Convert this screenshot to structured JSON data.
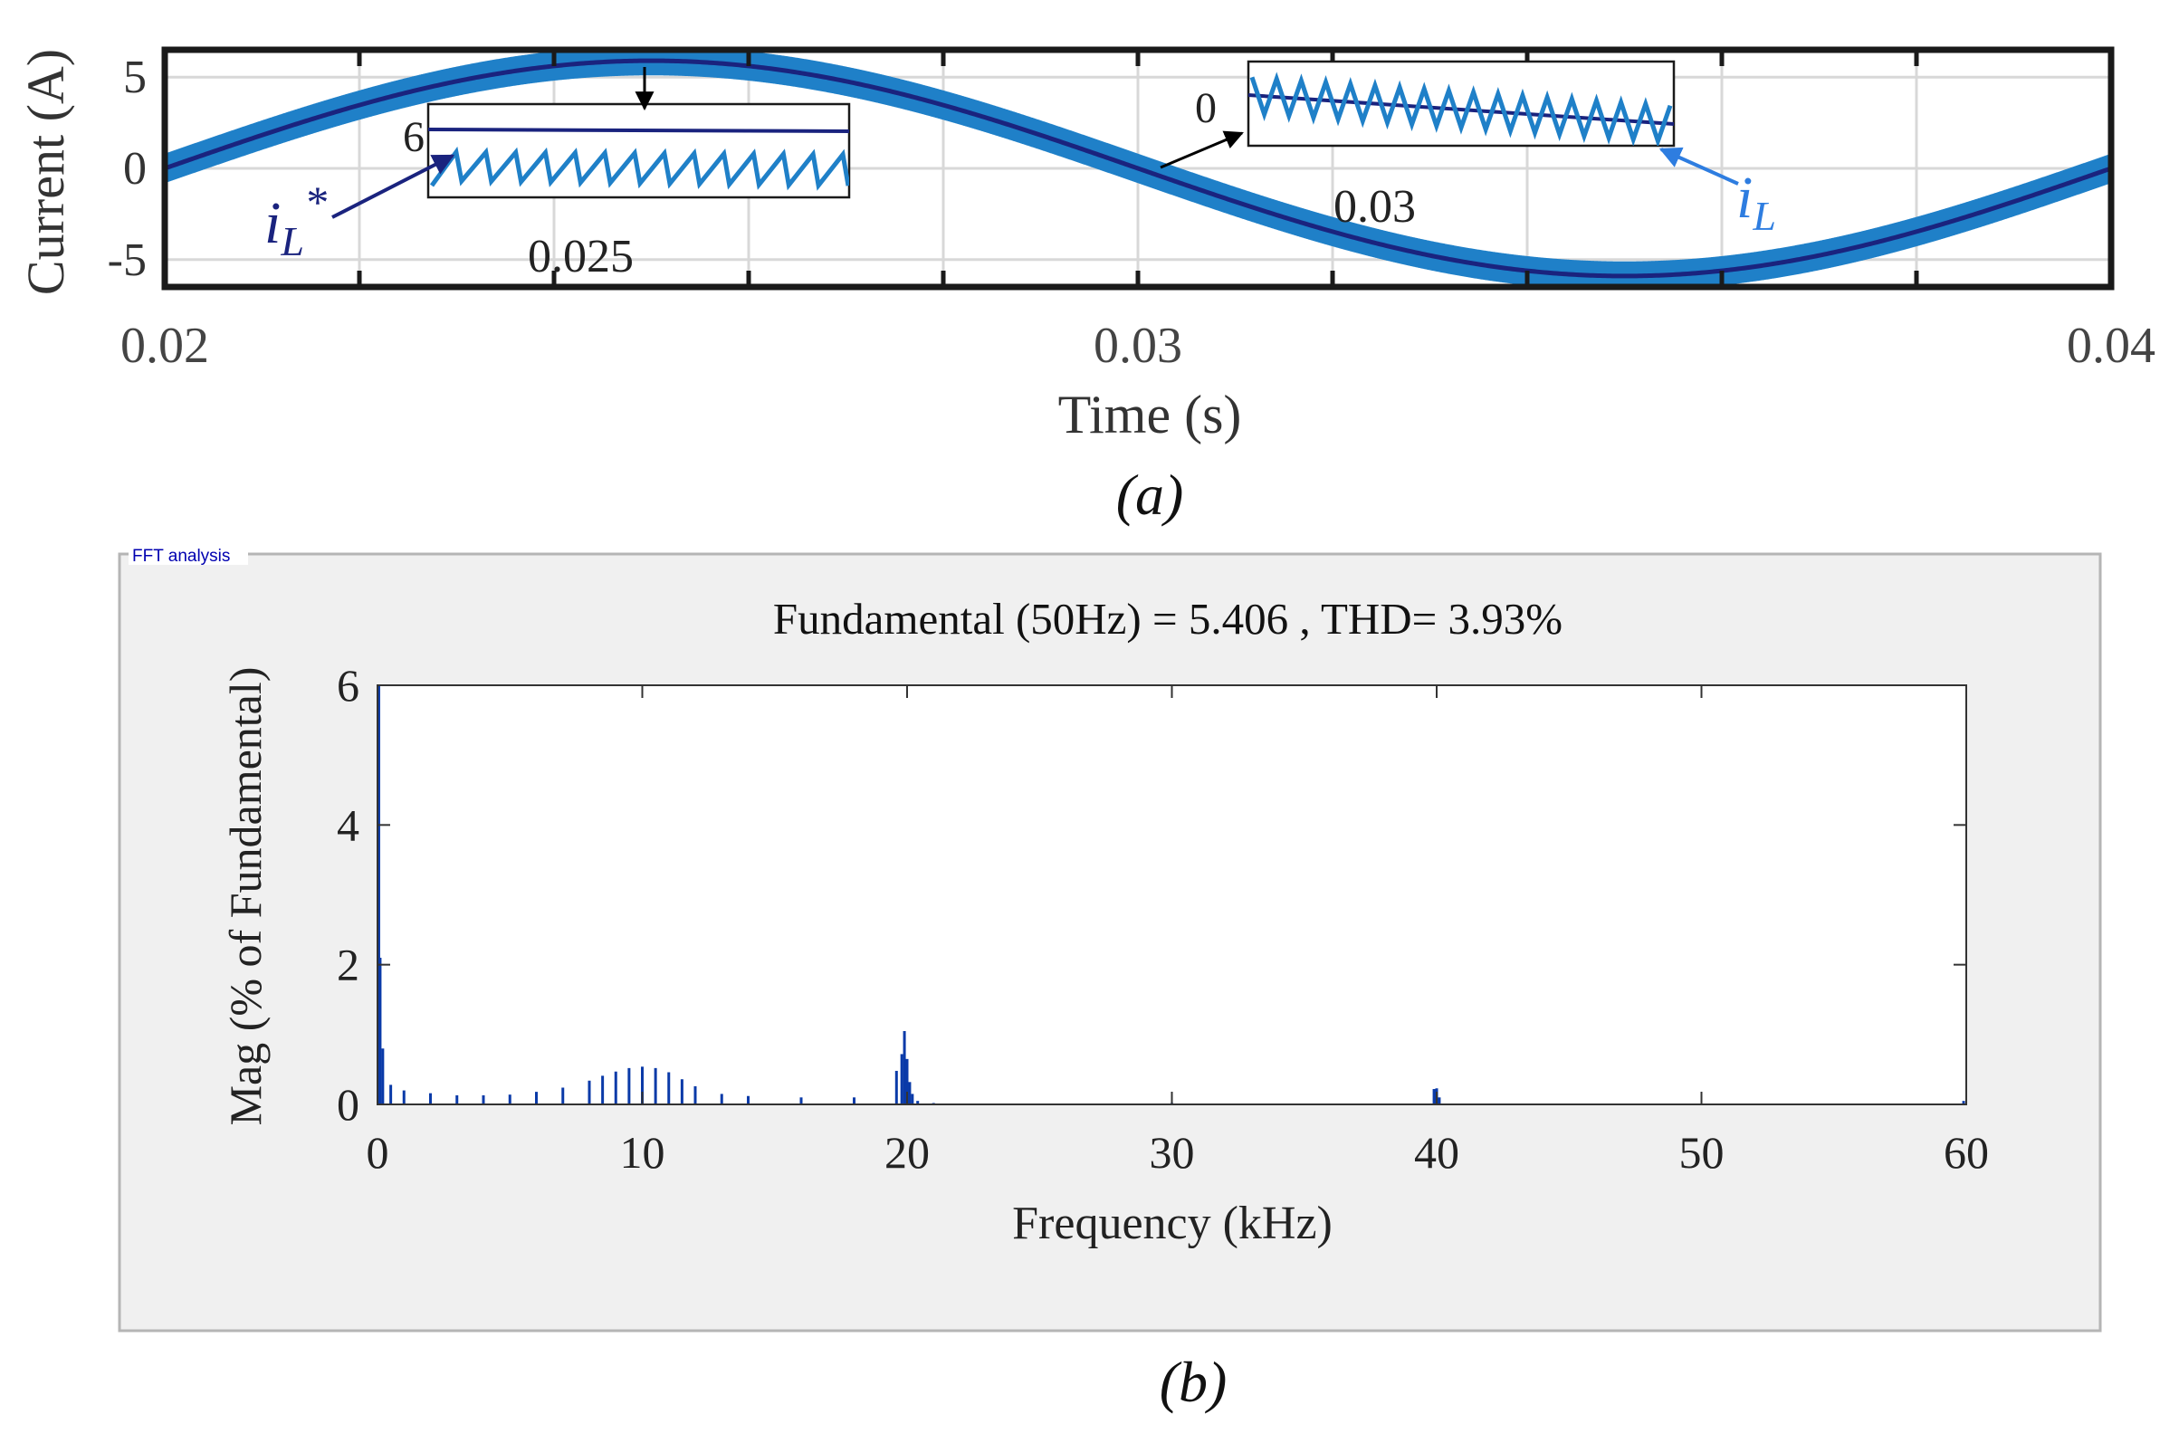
{
  "chart_data": [
    {
      "type": "line",
      "panel": "(a)",
      "xlabel": "Time (s)",
      "ylabel": "Current (A)",
      "xlim": [
        0.02,
        0.04
      ],
      "ylim": [
        -6.5,
        6.5
      ],
      "xticks": [
        0.02,
        0.03,
        0.04
      ],
      "xtick_labels": [
        "0.02",
        "0.03",
        "0.04"
      ],
      "yticks": [
        -5,
        0,
        5
      ],
      "ytick_labels": [
        "-5",
        "0",
        "5"
      ],
      "grid": true,
      "frequency_hz": 50,
      "series": [
        {
          "name": "i_L*",
          "kind": "reference",
          "amplitude": 5.9,
          "color": "#1a237e"
        },
        {
          "name": "i_L",
          "kind": "measured",
          "amplitude": 5.9,
          "ripple_pp": 1.6,
          "color": "#1f80c8"
        }
      ],
      "annotations": [
        {
          "label_main": "i",
          "label_sub": "L",
          "label_sup": "*",
          "target": "i_L*",
          "color": "#1a237e"
        },
        {
          "label_main": "i",
          "label_sub": "L",
          "label_sup": "",
          "target": "i_L",
          "color": "#2e7de0"
        }
      ],
      "insets": [
        {
          "ylabel": "6",
          "xlabel": "0.025",
          "center_time": 0.0249
        },
        {
          "ylabel": "0",
          "xlabel": "0.03",
          "center_time": 0.0302
        }
      ]
    },
    {
      "type": "bar",
      "panel": "(b)",
      "panel_title": "FFT analysis",
      "title": "Fundamental (50Hz) = 5.406 , THD= 3.93%",
      "xlabel": "Frequency (kHz)",
      "ylabel": "Mag (% of Fundamental)",
      "xlim": [
        0,
        60
      ],
      "ylim": [
        0,
        6
      ],
      "xticks": [
        0,
        10,
        20,
        30,
        40,
        50,
        60
      ],
      "xtick_labels": [
        "0",
        "10",
        "20",
        "30",
        "40",
        "50",
        "60"
      ],
      "yticks": [
        0,
        2,
        4,
        6
      ],
      "ytick_labels": [
        "0",
        "2",
        "4",
        "6"
      ],
      "fundamental_hz": 50,
      "fundamental_value": 5.406,
      "thd_percent": 3.93,
      "x": [
        0.05,
        0.1,
        0.2,
        0.5,
        1,
        2,
        3,
        4,
        5,
        6,
        7,
        8,
        8.5,
        9,
        9.5,
        10,
        10.5,
        11,
        11.5,
        12,
        13,
        14,
        16,
        18,
        19.6,
        19.8,
        19.9,
        20.0,
        20.1,
        20.2,
        20.4,
        21,
        22,
        30,
        39.9,
        40.0,
        40.1,
        59.9
      ],
      "values": [
        6.0,
        2.1,
        0.8,
        0.28,
        0.2,
        0.16,
        0.13,
        0.13,
        0.14,
        0.18,
        0.24,
        0.34,
        0.41,
        0.47,
        0.52,
        0.54,
        0.52,
        0.46,
        0.36,
        0.26,
        0.15,
        0.12,
        0.1,
        0.1,
        0.48,
        0.72,
        1.05,
        0.65,
        0.32,
        0.15,
        0.05,
        0.02,
        0.01,
        0.02,
        0.22,
        0.23,
        0.1,
        0.05
      ],
      "color": "#0a3aa8"
    }
  ],
  "captions": {
    "a": "(a)",
    "b": "(b)"
  }
}
